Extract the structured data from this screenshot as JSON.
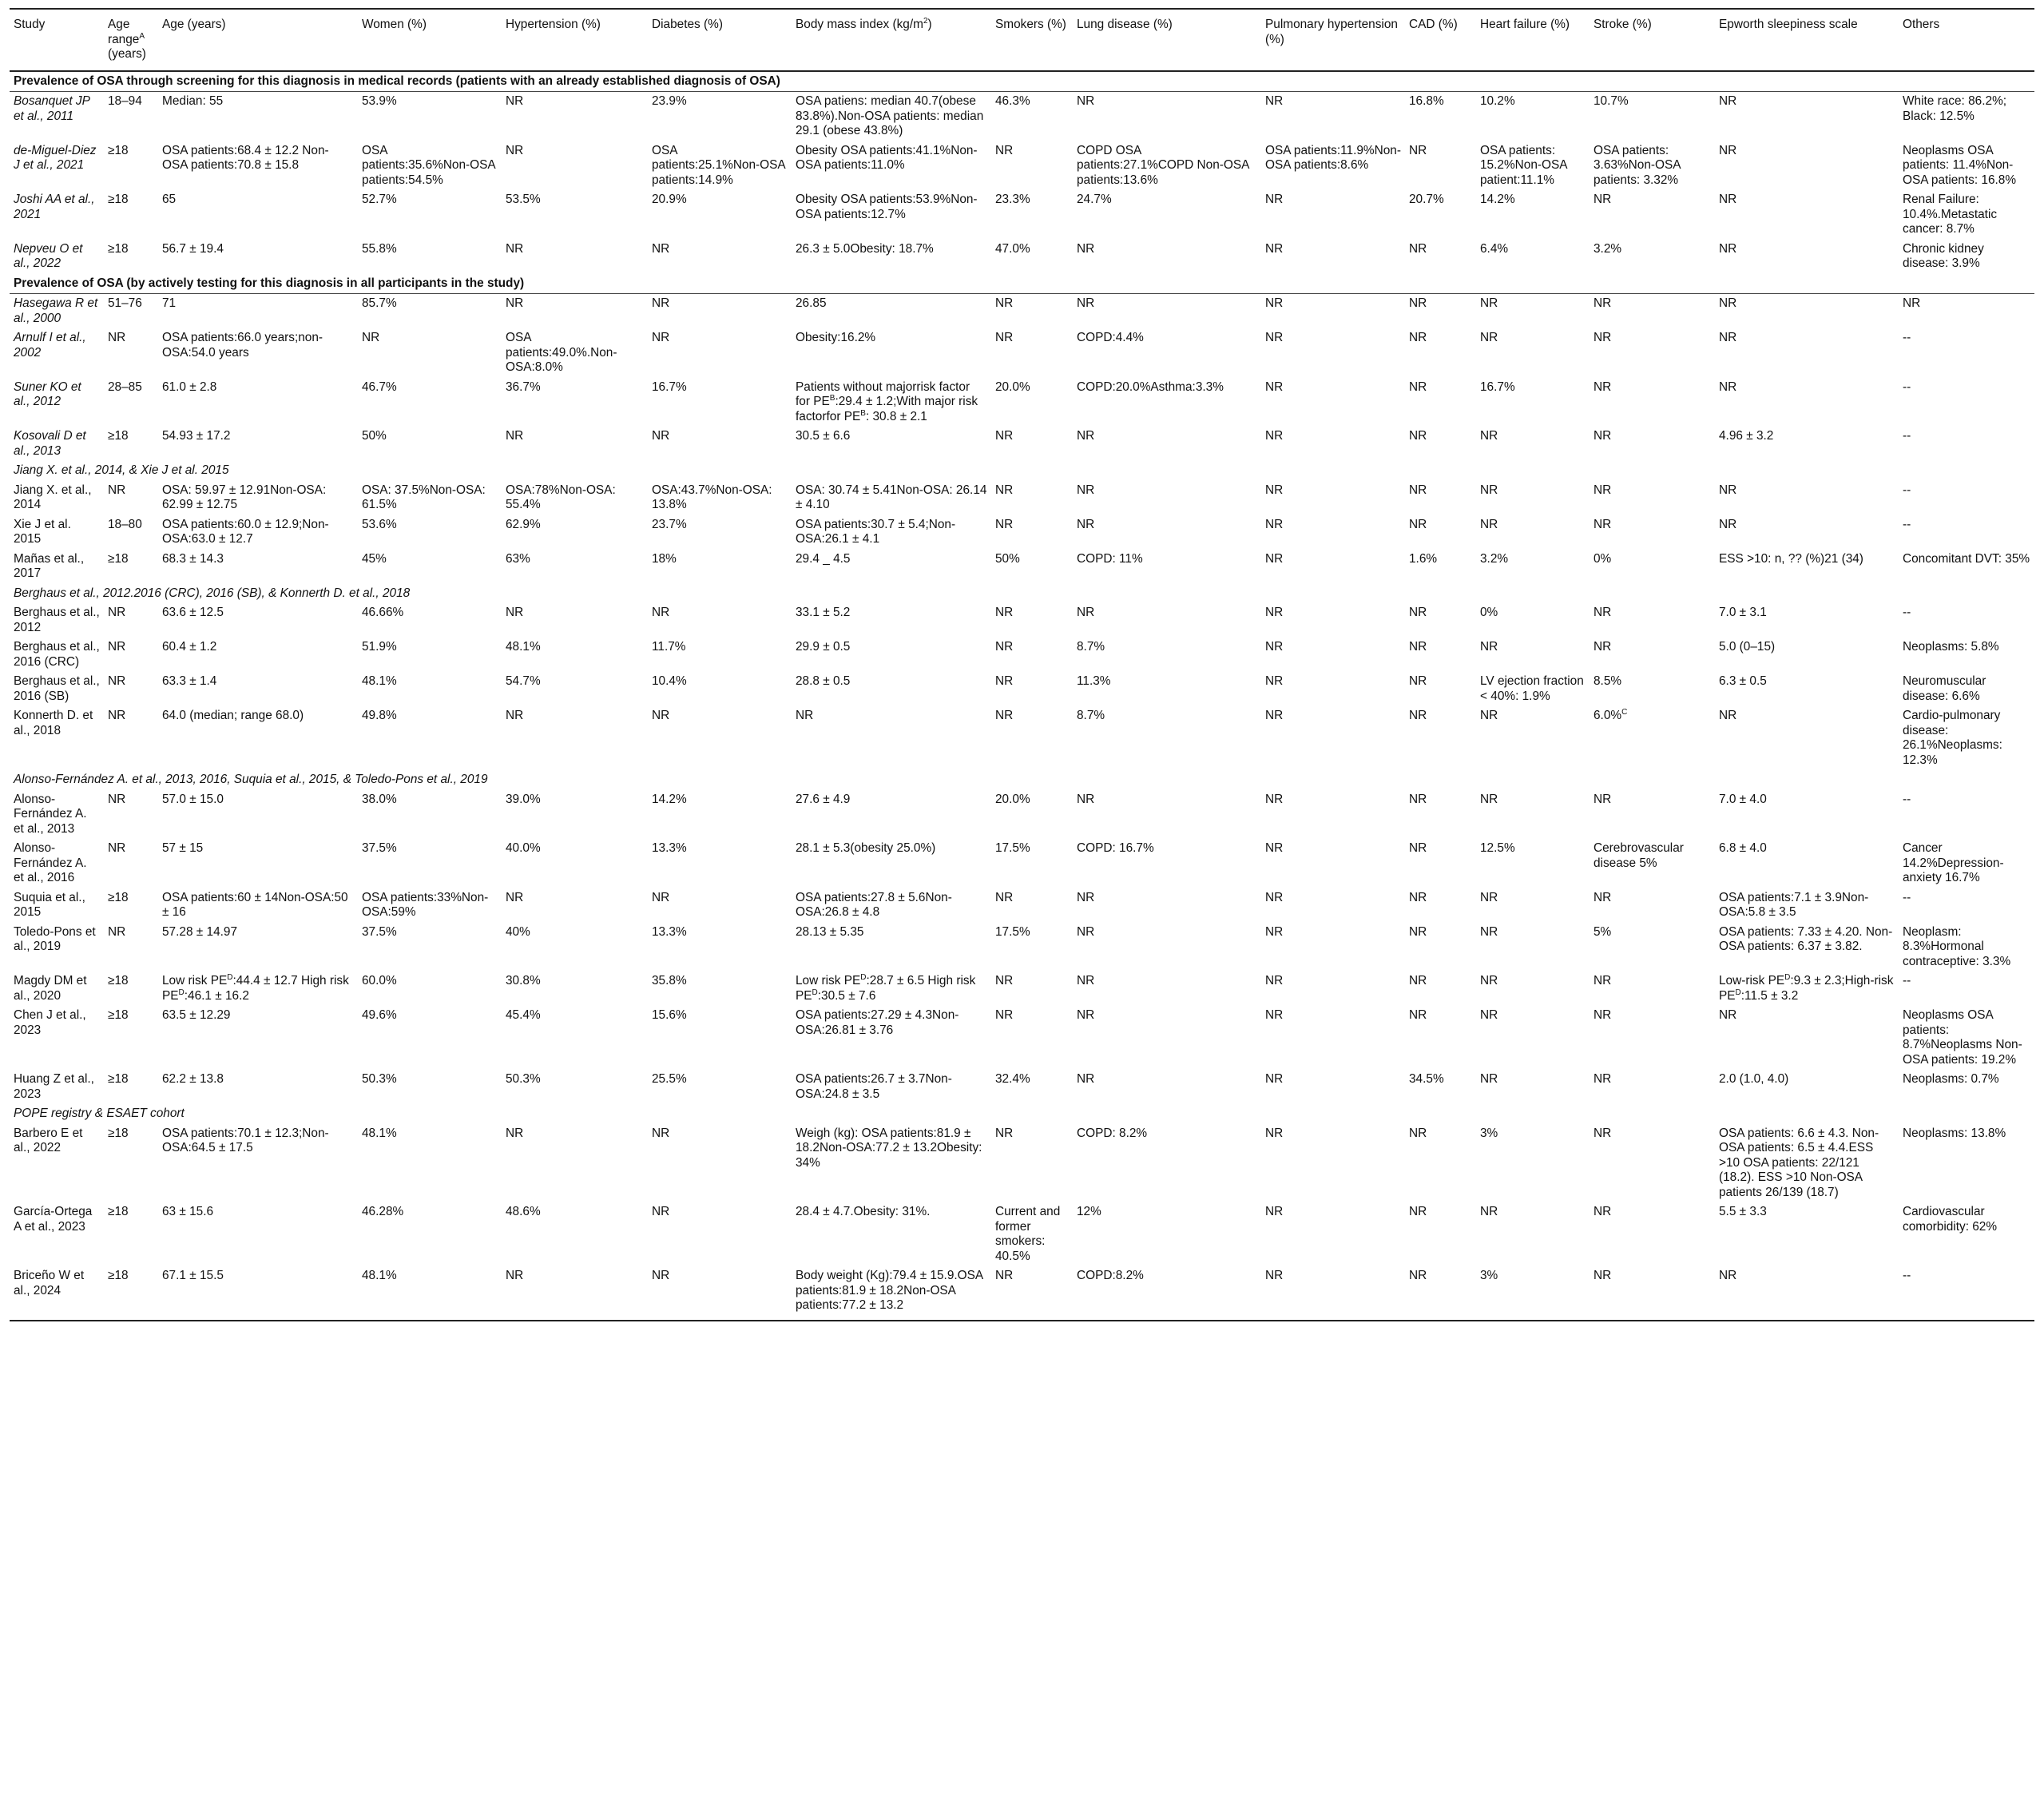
{
  "columns": [
    "Study",
    "Age range^A (years)",
    "Age (years)",
    "Women (%)",
    "Hypertension (%)",
    "Diabetes (%)",
    "Body mass index (kg/m^2)",
    "Smokers (%)",
    "Lung disease (%)",
    "Pulmonary hypertension (%)",
    "CAD (%)",
    "Heart failure (%)",
    "Stroke (%)",
    "Epworth sleepiness scale",
    "Others"
  ],
  "rows": [
    {
      "type": "section",
      "text": "Prevalence of OSA through screening for this diagnosis in medical records (patients with an already established diagnosis of OSA)"
    },
    {
      "type": "data",
      "italic": true,
      "cells": [
        "Bosanquet JP et al., 2011",
        "18–94",
        "Median: 55",
        "53.9%",
        "NR",
        "23.9%",
        "OSA patiens: median 40.7(obese 83.8%).Non-OSA patients: median 29.1 (obese 43.8%)",
        "46.3%",
        "NR",
        "NR",
        "16.8%",
        "10.2%",
        "10.7%",
        "NR",
        "White race: 86.2%; Black: 12.5%"
      ]
    },
    {
      "type": "data",
      "italic": true,
      "cells": [
        "de-Miguel-Diez J et al., 2021",
        "≥18",
        "OSA patients:68.4 ± 12.2 Non-OSA patients:70.8 ± 15.8",
        "OSA patients:35.6%Non-OSA patients:54.5%",
        "NR",
        "OSA patients:25.1%Non-OSA patients:14.9%",
        "Obesity OSA patients:41.1%Non-OSA patients:11.0%",
        "NR",
        "COPD OSA patients:27.1%COPD Non-OSA patients:13.6%",
        "OSA patients:11.9%Non-OSA patients:8.6%",
        "NR",
        "OSA patients: 15.2%Non-OSA patient:11.1%",
        "OSA patients: 3.63%Non-OSA patients: 3.32%",
        "NR",
        "Neoplasms OSA patients: 11.4%Non-OSA patients: 16.8%"
      ]
    },
    {
      "type": "data",
      "italic": true,
      "cells": [
        "Joshi AA et al., 2021",
        "≥18",
        "65",
        "52.7%",
        "53.5%",
        "20.9%",
        "Obesity OSA patients:53.9%Non-OSA patients:12.7%",
        "23.3%",
        "24.7%",
        "NR",
        "20.7%",
        "14.2%",
        "NR",
        "NR",
        "Renal Failure: 10.4%.Metastatic cancer: 8.7%"
      ]
    },
    {
      "type": "data",
      "italic": true,
      "cells": [
        "Nepveu O et al., 2022",
        "≥18",
        "56.7 ± 19.4",
        "55.8%",
        "NR",
        "NR",
        "26.3 ± 5.0Obesity: 18.7%",
        "47.0%",
        "NR",
        "NR",
        "NR",
        "6.4%",
        "3.2%",
        "NR",
        "Chronic kidney disease: 3.9%"
      ]
    },
    {
      "type": "section",
      "text": "Prevalence of OSA (by actively testing for this diagnosis in all participants in the study)"
    },
    {
      "type": "data",
      "italic": true,
      "cells": [
        "Hasegawa R et al., 2000",
        "51–76",
        "71",
        "85.7%",
        "NR",
        "NR",
        "26.85",
        "NR",
        "NR",
        "NR",
        "NR",
        "NR",
        "NR",
        "NR",
        "NR"
      ]
    },
    {
      "type": "data",
      "italic": true,
      "cells": [
        "Arnulf I et al., 2002",
        "NR",
        "OSA patients:66.0 years;non-OSA:54.0 years",
        "NR",
        "OSA patients:49.0%.Non-OSA:8.0%",
        "NR",
        "Obesity:16.2%",
        "NR",
        "COPD:4.4%",
        "NR",
        "NR",
        "NR",
        "NR",
        "NR",
        "--"
      ]
    },
    {
      "type": "data",
      "italic": true,
      "cells": [
        "Suner KO et al., 2012",
        "28–85",
        "61.0 ± 2.8",
        "46.7%",
        "36.7%",
        "16.7%",
        "Patients without majorrisk factor for PE^B:29.4 ± 1.2;With major risk factorfor PE^B: 30.8 ± 2.1",
        "20.0%",
        "COPD:20.0%Asthma:3.3%",
        "NR",
        "NR",
        "16.7%",
        "NR",
        "NR",
        "--"
      ]
    },
    {
      "type": "data",
      "italic": true,
      "cells": [
        "Kosovali D et al., 2013",
        "≥18",
        "54.93 ± 17.2",
        "50%",
        "NR",
        "NR",
        "30.5 ± 6.6",
        "NR",
        "NR",
        "NR",
        "NR",
        "NR",
        "NR",
        "4.96 ± 3.2",
        "--"
      ]
    },
    {
      "type": "subgroup",
      "text": "Jiang X. et al., 2014, & Xie J et al. 2015"
    },
    {
      "type": "data",
      "italic": false,
      "cells": [
        "Jiang X. et al., 2014",
        "NR",
        "OSA: 59.97 ± 12.91Non-OSA: 62.99 ± 12.75",
        "OSA: 37.5%Non-OSA: 61.5%",
        "OSA:78%Non-OSA: 55.4%",
        "OSA:43.7%Non-OSA: 13.8%",
        "OSA: 30.74 ± 5.41Non-OSA: 26.14 ± 4.10",
        "NR",
        "NR",
        "NR",
        "NR",
        "NR",
        "NR",
        "NR",
        "--"
      ]
    },
    {
      "type": "data",
      "italic": false,
      "cells": [
        "Xie J et al. 2015",
        "18–80",
        "OSA patients:60.0 ± 12.9;Non-OSA:63.0 ± 12.7",
        "53.6%",
        "62.9%",
        "23.7%",
        "OSA patients:30.7 ± 5.4;Non-OSA:26.1 ± 4.1",
        "NR",
        "NR",
        "NR",
        "NR",
        "NR",
        "NR",
        "NR",
        "--"
      ]
    },
    {
      "type": "data",
      "italic": false,
      "cells": [
        "Mañas et al., 2017",
        "≥18",
        "68.3 ± 14.3",
        "45%",
        "63%",
        "18%",
        "29.4 _ 4.5",
        "50%",
        "COPD: 11%",
        "NR",
        "1.6%",
        "3.2%",
        "0%",
        "ESS >10: n, ?? (%)21 (34)",
        "Concomitant DVT: 35%"
      ]
    },
    {
      "type": "subgroup",
      "text": "Berghaus et al., 2012.2016 (CRC), 2016 (SB), & Konnerth D. et al., 2018"
    },
    {
      "type": "data",
      "italic": false,
      "cells": [
        "Berghaus et al., 2012",
        "NR",
        "63.6 ± 12.5",
        "46.66%",
        "NR",
        "NR",
        "33.1 ± 5.2",
        "NR",
        "NR",
        "NR",
        "NR",
        "0%",
        "NR",
        "7.0 ± 3.1",
        "--"
      ]
    },
    {
      "type": "data",
      "italic": false,
      "cells": [
        "Berghaus et al., 2016 (CRC)",
        "NR",
        "60.4 ± 1.2",
        "51.9%",
        "48.1%",
        "11.7%",
        "29.9 ± 0.5",
        "NR",
        "8.7%",
        "NR",
        "NR",
        "NR",
        "NR",
        "5.0 (0–15)",
        "Neoplasms: 5.8%"
      ]
    },
    {
      "type": "data",
      "italic": false,
      "cells": [
        "Berghaus et al., 2016 (SB)",
        "NR",
        "63.3 ± 1.4",
        "48.1%",
        "54.7%",
        "10.4%",
        "28.8 ± 0.5",
        "NR",
        "11.3%",
        "NR",
        "NR",
        "LV ejection fraction < 40%: 1.9%",
        "8.5%",
        "6.3 ± 0.5",
        "Neuromuscular disease: 6.6%"
      ]
    },
    {
      "type": "data",
      "italic": false,
      "cells": [
        "Konnerth D. et al., 2018",
        "NR",
        "64.0 (median; range 68.0)",
        "49.8%",
        "NR",
        "NR",
        "NR",
        "NR",
        "8.7%",
        "NR",
        "NR",
        "NR",
        "6.0%^C",
        "NR",
        "Cardio-pulmonary disease: 26.1%Neoplasms: 12.3%"
      ]
    },
    {
      "type": "subgroup",
      "text": "Alonso-Fernández A. et al., 2013, 2016, Suquia et al., 2015, & Toledo-Pons et al., 2019"
    },
    {
      "type": "data",
      "italic": false,
      "cells": [
        "Alonso-Fernández A. et al., 2013",
        "NR",
        "57.0 ± 15.0",
        "38.0%",
        "39.0%",
        "14.2%",
        "27.6 ± 4.9",
        "20.0%",
        "NR",
        "NR",
        "NR",
        "NR",
        "NR",
        "7.0 ± 4.0",
        "--"
      ]
    },
    {
      "type": "data",
      "italic": false,
      "cells": [
        "Alonso-Fernández A. et al., 2016",
        "NR",
        "57 ± 15",
        "37.5%",
        "40.0%",
        "13.3%",
        "28.1 ± 5.3(obesity 25.0%)",
        "17.5%",
        "COPD: 16.7%",
        "NR",
        "NR",
        "12.5%",
        "Cerebrovascular disease 5%",
        "6.8 ± 4.0",
        "Cancer 14.2%Depression-anxiety 16.7%"
      ]
    },
    {
      "type": "data",
      "italic": false,
      "cells": [
        "Suquia et al., 2015",
        "≥18",
        "OSA patients:60 ± 14Non-OSA:50 ± 16",
        "OSA patients:33%Non-OSA:59%",
        "NR",
        "NR",
        "OSA patients:27.8 ± 5.6Non-OSA:26.8 ± 4.8",
        "NR",
        "NR",
        "NR",
        "NR",
        "NR",
        "NR",
        "OSA patients:7.1 ± 3.9Non-OSA:5.8 ± 3.5",
        "--"
      ]
    },
    {
      "type": "data",
      "italic": false,
      "cells": [
        "Toledo-Pons et al., 2019",
        "NR",
        "57.28 ± 14.97",
        "37.5%",
        "40%",
        "13.3%",
        "28.13 ± 5.35",
        "17.5%",
        "NR",
        "NR",
        "NR",
        "NR",
        "5%",
        "OSA patients: 7.33 ± 4.20. Non-OSA patients: 6.37 ± 3.82.",
        "Neoplasm: 8.3%Hormonal contraceptive: 3.3%"
      ]
    },
    {
      "type": "data",
      "italic": false,
      "cells": [
        "Magdy DM et al., 2020",
        "≥18",
        "Low risk PE^D:44.4 ± 12.7 High risk PE^D:46.1 ± 16.2",
        "60.0%",
        "30.8%",
        "35.8%",
        "Low risk PE^D:28.7 ± 6.5 High risk PE^D:30.5 ± 7.6",
        "NR",
        "NR",
        "NR",
        "NR",
        "NR",
        "NR",
        "Low-risk PE^D:9.3 ± 2.3;High-risk PE^D:11.5 ± 3.2",
        "--"
      ]
    },
    {
      "type": "data",
      "italic": false,
      "cells": [
        "Chen J et al., 2023",
        "≥18",
        "63.5 ± 12.29",
        "49.6%",
        "45.4%",
        "15.6%",
        "OSA patients:27.29 ± 4.3Non-OSA:26.81 ± 3.76",
        "NR",
        "NR",
        "NR",
        "NR",
        "NR",
        "NR",
        "NR",
        "Neoplasms OSA patients: 8.7%Neoplasms Non-OSA patients: 19.2%"
      ]
    },
    {
      "type": "data",
      "italic": false,
      "cells": [
        "Huang Z et al., 2023",
        "≥18",
        "62.2 ± 13.8",
        "50.3%",
        "50.3%",
        "25.5%",
        "OSA patients:26.7 ± 3.7Non-OSA:24.8 ± 3.5",
        "32.4%",
        "NR",
        "NR",
        "34.5%",
        "NR",
        "NR",
        "2.0 (1.0, 4.0)",
        "Neoplasms: 0.7%"
      ]
    },
    {
      "type": "subgroup",
      "text": "POPE registry & ESAET cohort"
    },
    {
      "type": "data",
      "italic": false,
      "cells": [
        "Barbero E et al., 2022",
        "≥18",
        "OSA patients:70.1 ± 12.3;Non-OSA:64.5 ± 17.5",
        "48.1%",
        "NR",
        "NR",
        "Weigh (kg): OSA patients:81.9 ± 18.2Non-OSA:77.2 ± 13.2Obesity: 34%",
        "NR",
        "COPD: 8.2%",
        "NR",
        "NR",
        "3%",
        "NR",
        "OSA patients: 6.6 ± 4.3. Non-OSA patients: 6.5 ± 4.4.ESS >10 OSA patients: 22/121 (18.2). ESS >10 Non-OSA patients 26/139 (18.7)",
        "Neoplasms: 13.8%"
      ]
    },
    {
      "type": "data",
      "italic": false,
      "cells": [
        "García-Ortega A et al., 2023",
        "≥18",
        "63 ± 15.6",
        "46.28%",
        "48.6%",
        "NR",
        "28.4 ± 4.7.Obesity: 31%.",
        "Current and former smokers: 40.5%",
        "12%",
        "NR",
        "NR",
        "NR",
        "NR",
        "5.5 ± 3.3",
        "Cardiovascular comorbidity: 62%"
      ]
    },
    {
      "type": "data",
      "italic": false,
      "cells": [
        "Briceño W et al., 2024",
        "≥18",
        "67.1 ± 15.5",
        "48.1%",
        "NR",
        "NR",
        "Body weight (Kg):79.4 ± 15.9.OSA patients:81.9 ± 18.2Non-OSA patients:77.2 ± 13.2",
        "NR",
        "COPD:8.2%",
        "NR",
        "NR",
        "3%",
        "NR",
        "NR",
        "--"
      ]
    }
  ]
}
